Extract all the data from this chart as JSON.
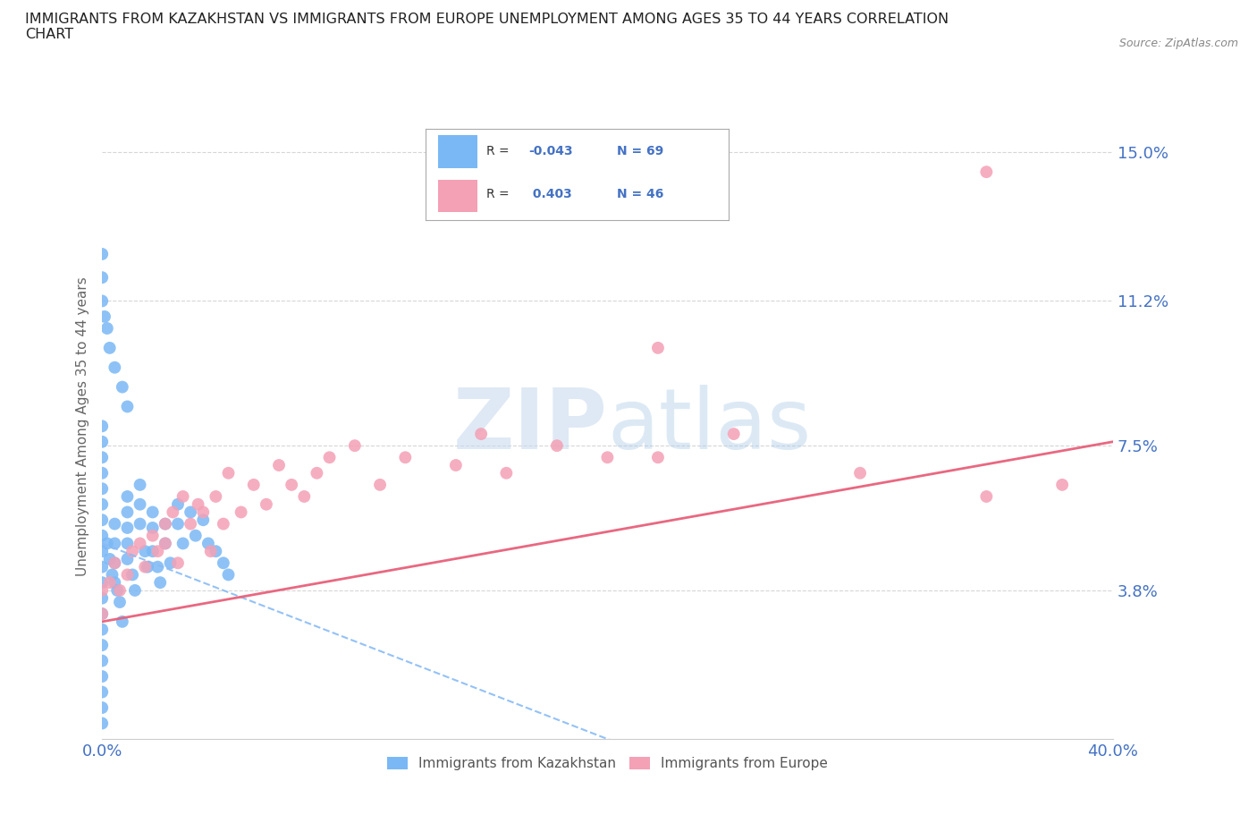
{
  "title": "IMMIGRANTS FROM KAZAKHSTAN VS IMMIGRANTS FROM EUROPE UNEMPLOYMENT AMONG AGES 35 TO 44 YEARS CORRELATION\nCHART",
  "source": "Source: ZipAtlas.com",
  "ylabel": "Unemployment Among Ages 35 to 44 years",
  "xlim": [
    0.0,
    0.4
  ],
  "ylim": [
    0.0,
    0.16
  ],
  "yticks": [
    0.038,
    0.075,
    0.112,
    0.15
  ],
  "ytick_labels": [
    "3.8%",
    "7.5%",
    "11.2%",
    "15.0%"
  ],
  "color_kaz": "#7ab8f5",
  "color_eur": "#f4a0b5",
  "color_kaz_line": "#88bbf5",
  "color_eur_line": "#e8607a",
  "watermark_color": "#d0e4f7",
  "background_color": "#ffffff",
  "grid_color": "#cccccc",
  "title_color": "#222222",
  "tick_label_color": "#4472c4",
  "kaz_x": [
    0.0,
    0.0,
    0.0,
    0.0,
    0.0,
    0.0,
    0.0,
    0.0,
    0.0,
    0.0,
    0.0,
    0.0,
    0.0,
    0.0,
    0.0,
    0.0,
    0.0,
    0.0,
    0.0,
    0.0,
    0.002,
    0.003,
    0.004,
    0.005,
    0.005,
    0.005,
    0.005,
    0.006,
    0.007,
    0.008,
    0.01,
    0.01,
    0.01,
    0.01,
    0.01,
    0.012,
    0.013,
    0.015,
    0.015,
    0.015,
    0.017,
    0.018,
    0.02,
    0.02,
    0.02,
    0.022,
    0.023,
    0.025,
    0.025,
    0.027,
    0.03,
    0.03,
    0.032,
    0.035,
    0.037,
    0.04,
    0.042,
    0.045,
    0.048,
    0.05,
    0.0,
    0.0,
    0.0,
    0.001,
    0.002,
    0.003,
    0.005,
    0.008,
    0.01
  ],
  "kaz_y": [
    0.052,
    0.048,
    0.044,
    0.04,
    0.036,
    0.032,
    0.028,
    0.024,
    0.02,
    0.016,
    0.012,
    0.008,
    0.004,
    0.06,
    0.056,
    0.068,
    0.064,
    0.072,
    0.08,
    0.076,
    0.05,
    0.046,
    0.042,
    0.055,
    0.05,
    0.045,
    0.04,
    0.038,
    0.035,
    0.03,
    0.062,
    0.058,
    0.054,
    0.05,
    0.046,
    0.042,
    0.038,
    0.065,
    0.06,
    0.055,
    0.048,
    0.044,
    0.058,
    0.054,
    0.048,
    0.044,
    0.04,
    0.055,
    0.05,
    0.045,
    0.06,
    0.055,
    0.05,
    0.058,
    0.052,
    0.056,
    0.05,
    0.048,
    0.045,
    0.042,
    0.112,
    0.118,
    0.124,
    0.108,
    0.105,
    0.1,
    0.095,
    0.09,
    0.085
  ],
  "eur_x": [
    0.0,
    0.0,
    0.003,
    0.005,
    0.007,
    0.01,
    0.012,
    0.015,
    0.017,
    0.02,
    0.022,
    0.025,
    0.025,
    0.028,
    0.03,
    0.032,
    0.035,
    0.038,
    0.04,
    0.043,
    0.045,
    0.048,
    0.05,
    0.055,
    0.06,
    0.065,
    0.07,
    0.075,
    0.08,
    0.085,
    0.09,
    0.1,
    0.11,
    0.12,
    0.14,
    0.15,
    0.16,
    0.18,
    0.2,
    0.22,
    0.25,
    0.3,
    0.35,
    0.38,
    0.22,
    0.35
  ],
  "eur_y": [
    0.038,
    0.032,
    0.04,
    0.045,
    0.038,
    0.042,
    0.048,
    0.05,
    0.044,
    0.052,
    0.048,
    0.055,
    0.05,
    0.058,
    0.045,
    0.062,
    0.055,
    0.06,
    0.058,
    0.048,
    0.062,
    0.055,
    0.068,
    0.058,
    0.065,
    0.06,
    0.07,
    0.065,
    0.062,
    0.068,
    0.072,
    0.075,
    0.065,
    0.072,
    0.07,
    0.078,
    0.068,
    0.075,
    0.072,
    0.1,
    0.078,
    0.068,
    0.062,
    0.065,
    0.072,
    0.145
  ]
}
